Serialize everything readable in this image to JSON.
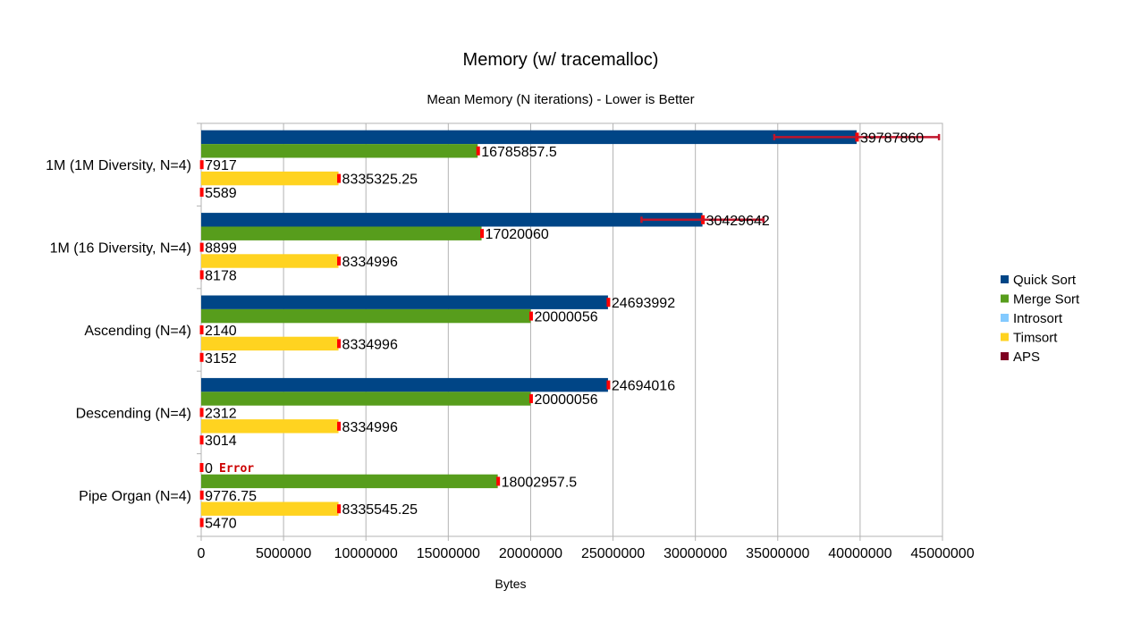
{
  "chart_data": {
    "type": "bar",
    "orientation": "horizontal",
    "title": "Memory (w/ tracemalloc)",
    "subtitle": "Mean Memory (N iterations) - Lower is Better",
    "xlabel": "Bytes",
    "ylabel": "",
    "xlim": [
      0,
      45000000
    ],
    "xticks": [
      0,
      5000000,
      10000000,
      15000000,
      20000000,
      25000000,
      30000000,
      35000000,
      40000000,
      45000000
    ],
    "xtick_labels": [
      "0",
      "5000000",
      "10000000",
      "15000000",
      "20000000",
      "25000000",
      "30000000",
      "35000000",
      "40000000",
      "45000000"
    ],
    "grid": true,
    "legend_position": "right",
    "categories": [
      "1M (1M Diversity, N=4)",
      "1M (16 Diversity, N=4)",
      "Ascending (N=4)",
      "Descending (N=4)",
      "Pipe Organ (N=4)"
    ],
    "series": [
      {
        "name": "Quick Sort",
        "color": "#004586",
        "values": [
          39787860,
          30429642,
          24693992,
          24694016,
          0
        ],
        "labels": [
          "39787860",
          "30429642",
          "24693992",
          "24694016",
          "0"
        ],
        "errors": [
          5000000,
          3700000,
          0,
          0,
          0
        ]
      },
      {
        "name": "Merge Sort",
        "color": "#579d1c",
        "values": [
          16785857.5,
          17020060,
          20000056,
          20000056,
          18002957.5
        ],
        "labels": [
          "16785857.5",
          "17020060",
          "20000056",
          "20000056",
          "18002957.5"
        ],
        "errors": [
          0,
          0,
          0,
          0,
          0
        ]
      },
      {
        "name": "Introsort",
        "color": "#83caff",
        "values": [
          7917,
          8899,
          2140,
          2312,
          9776.75
        ],
        "labels": [
          "7917",
          "8899",
          "2140",
          "2312",
          "9776.75"
        ],
        "errors": [
          0,
          0,
          0,
          0,
          0
        ]
      },
      {
        "name": "Timsort",
        "color": "#ffd320",
        "values": [
          8335325.25,
          8334996,
          8334996,
          8334996,
          8335545.25
        ],
        "labels": [
          "8335325.25",
          "8334996",
          "8334996",
          "8334996",
          "8335545.25"
        ],
        "errors": [
          0,
          0,
          0,
          0,
          0
        ]
      },
      {
        "name": "APS",
        "color": "#7e0021",
        "values": [
          5589,
          8178,
          3152,
          3014,
          5470
        ],
        "labels": [
          "5589",
          "8178",
          "3152",
          "3014",
          "5470"
        ],
        "errors": [
          0,
          0,
          0,
          0,
          0
        ]
      }
    ],
    "annotations": [
      {
        "category": "Pipe Organ (N=4)",
        "series": "Quick Sort",
        "text": "Error",
        "color": "#cc0000"
      }
    ],
    "error_bar_color": "#ff0000"
  }
}
